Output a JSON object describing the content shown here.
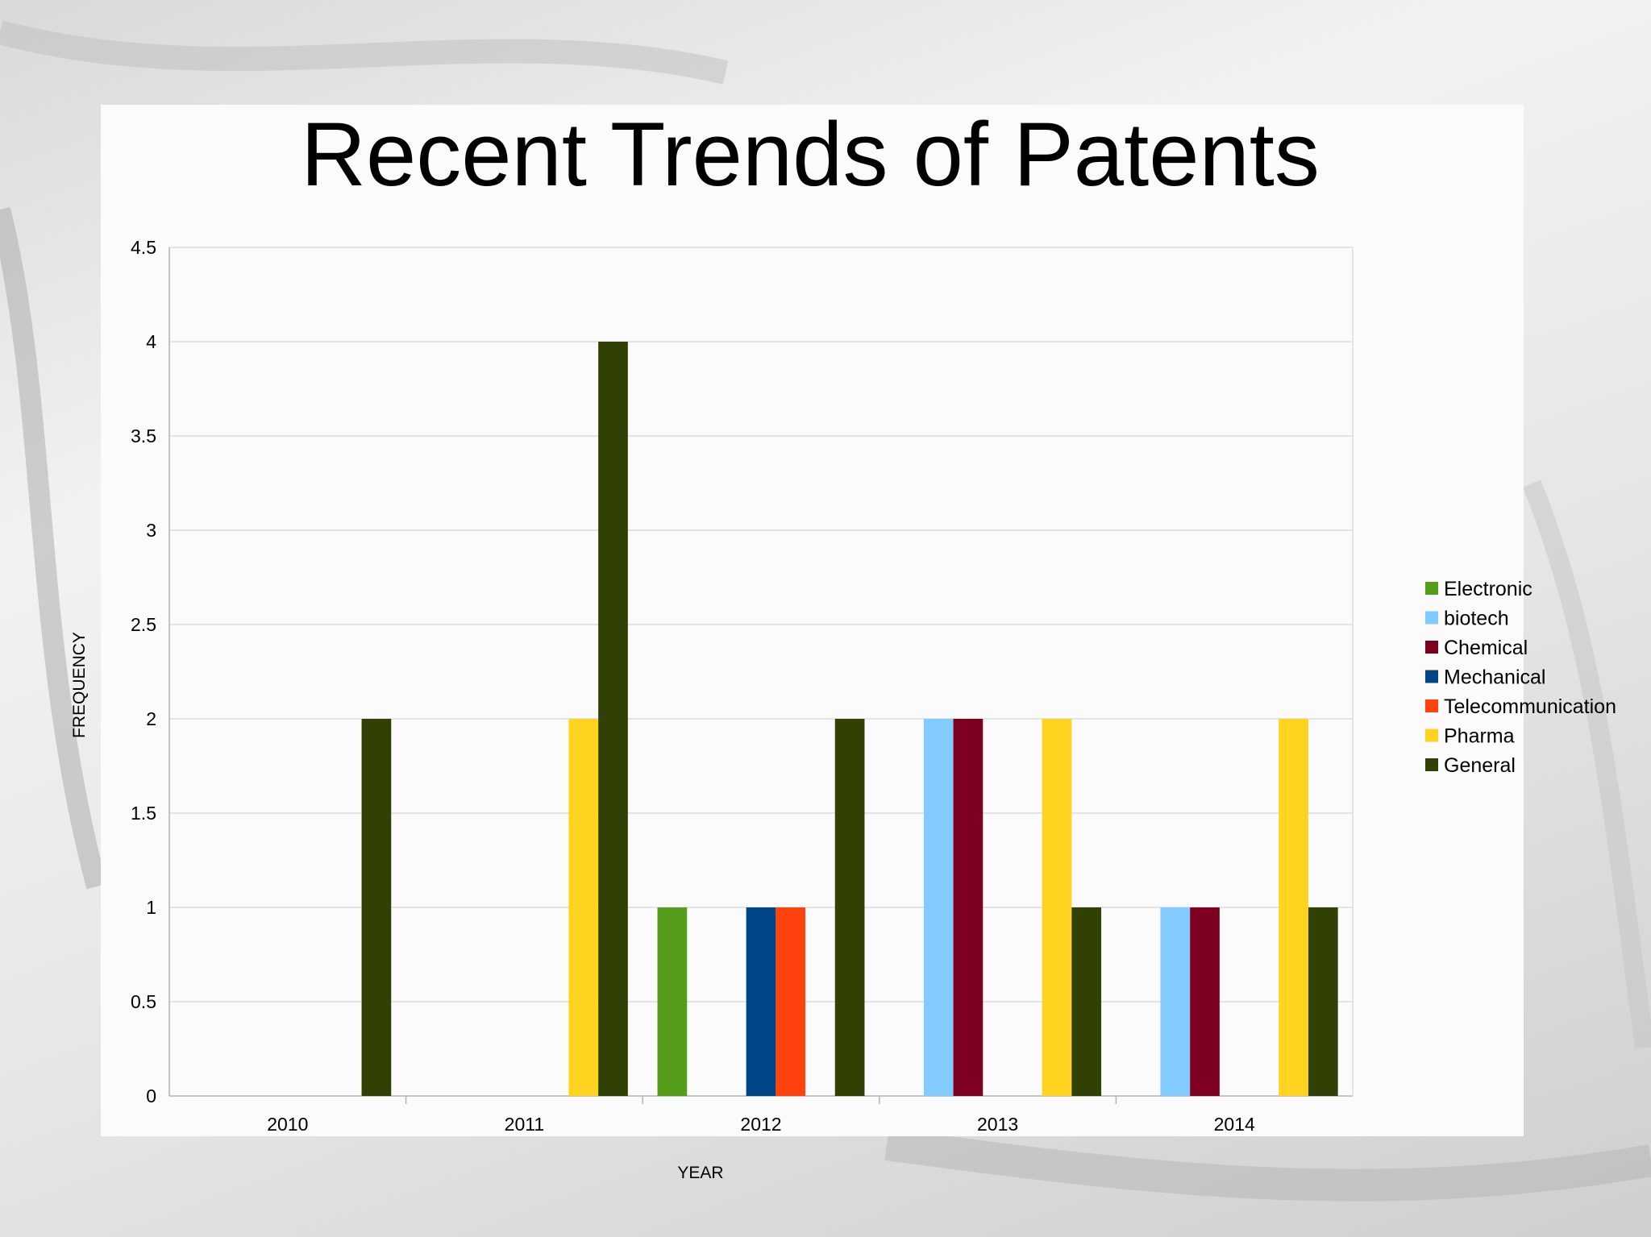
{
  "slide": {
    "title": "Recent Trends of Patents"
  },
  "chart_data": {
    "type": "bar",
    "title": "",
    "xlabel": "YEAR",
    "ylabel": "FREQUENCY",
    "ylim": [
      0,
      4.5
    ],
    "yticks": [
      "0",
      "0.5",
      "1",
      "1.5",
      "2",
      "2.5",
      "3",
      "3.5",
      "4",
      "4.5"
    ],
    "grid": true,
    "legend_position": "right",
    "categories": [
      "2010",
      "2011",
      "2012",
      "2013",
      "2014"
    ],
    "series": [
      {
        "name": "Electronic",
        "color": "#579d1c",
        "values": [
          0,
          0,
          1,
          0,
          0
        ]
      },
      {
        "name": "biotech",
        "color": "#83caff",
        "values": [
          0,
          0,
          0,
          2,
          1
        ]
      },
      {
        "name": "Chemical",
        "color": "#7e0021",
        "values": [
          0,
          0,
          0,
          2,
          1
        ]
      },
      {
        "name": "Mechanical",
        "color": "#004586",
        "values": [
          0,
          0,
          1,
          0,
          0
        ]
      },
      {
        "name": "Telecommunication",
        "color": "#ff420e",
        "values": [
          0,
          0,
          1,
          0,
          0
        ]
      },
      {
        "name": "Pharma",
        "color": "#ffd320",
        "values": [
          0,
          2,
          0,
          2,
          2
        ]
      },
      {
        "name": "General",
        "color": "#314004",
        "values": [
          2,
          4,
          2,
          1,
          1
        ]
      }
    ]
  }
}
